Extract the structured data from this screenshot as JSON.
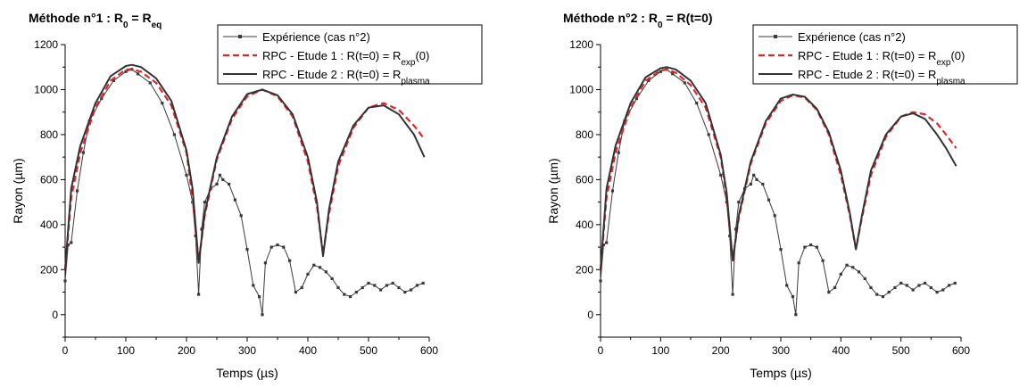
{
  "chart_data": [
    {
      "type": "line",
      "title": {
        "main": "Méthode n°1 : R",
        "sub": "0",
        "mid": " = R",
        "sub2": "eq"
      },
      "xlabel": "Temps (µs)",
      "ylabel": "Rayon (µm)",
      "xlim": [
        0,
        600
      ],
      "ylim": [
        -100,
        1200
      ],
      "xticks": [
        "0",
        "100",
        "200",
        "300",
        "400",
        "500",
        "600"
      ],
      "yticks": [
        "0",
        "200",
        "400",
        "600",
        "800",
        "1000",
        "1200"
      ],
      "legend_position": "top-right",
      "legend": [
        {
          "text": "Expérience (cas n°2)"
        },
        {
          "pre": "RPC - Etude 1 : R(t=0) = R",
          "sub": "exp",
          "post": "(0)"
        },
        {
          "pre": "RPC - Etude 2 : R(t=0) = R",
          "sub": "plasma",
          "post": ""
        }
      ],
      "series": [
        {
          "style": "experiment",
          "color": "#3a3a3a",
          "x": [
            0,
            5,
            10,
            20,
            30,
            40,
            60,
            80,
            100,
            110,
            120,
            140,
            160,
            180,
            200,
            210,
            215,
            220,
            225,
            230,
            240,
            250,
            255,
            260,
            270,
            280,
            290,
            300,
            310,
            320,
            325,
            330,
            340,
            350,
            360,
            370,
            380,
            390,
            400,
            410,
            420,
            430,
            440,
            450,
            460,
            470,
            480,
            490,
            500,
            510,
            520,
            530,
            540,
            550,
            560,
            570,
            580,
            590
          ],
          "y": [
            150,
            310,
            320,
            550,
            720,
            860,
            960,
            1040,
            1080,
            1090,
            1070,
            1030,
            940,
            800,
            620,
            500,
            350,
            90,
            380,
            500,
            560,
            580,
            620,
            600,
            580,
            510,
            440,
            290,
            130,
            80,
            0,
            230,
            300,
            310,
            300,
            240,
            100,
            120,
            180,
            220,
            210,
            190,
            160,
            120,
            90,
            80,
            100,
            120,
            140,
            130,
            110,
            130,
            140,
            120,
            100,
            110,
            130,
            140
          ]
        },
        {
          "style": "study1",
          "color": "#e0262b",
          "x": [
            0,
            10,
            25,
            50,
            75,
            100,
            110,
            125,
            150,
            175,
            200,
            210,
            220,
            230,
            250,
            275,
            300,
            325,
            350,
            375,
            400,
            415,
            425,
            435,
            450,
            475,
            500,
            525,
            550,
            575,
            592
          ],
          "y": [
            200,
            520,
            720,
            920,
            1040,
            1090,
            1090,
            1080,
            1030,
            930,
            720,
            520,
            230,
            440,
            690,
            870,
            970,
            1000,
            970,
            880,
            680,
            480,
            270,
            450,
            660,
            830,
            920,
            940,
            910,
            840,
            780
          ]
        },
        {
          "style": "study2",
          "color": "#333333",
          "x": [
            0,
            10,
            25,
            50,
            75,
            100,
            110,
            125,
            150,
            175,
            200,
            210,
            220,
            230,
            250,
            275,
            300,
            325,
            350,
            375,
            400,
            415,
            425,
            435,
            450,
            475,
            500,
            525,
            550,
            575,
            592
          ],
          "y": [
            200,
            560,
            750,
            940,
            1060,
            1105,
            1110,
            1100,
            1050,
            950,
            730,
            560,
            230,
            450,
            700,
            880,
            980,
            1000,
            975,
            890,
            700,
            500,
            260,
            470,
            680,
            840,
            920,
            930,
            890,
            800,
            700
          ]
        }
      ]
    },
    {
      "type": "line",
      "title": {
        "main": "Méthode n°2 : R",
        "sub": "0",
        "mid": " = R(t=0)",
        "sub2": ""
      },
      "xlabel": "Temps (µs)",
      "ylabel": "Rayon (µm)",
      "xlim": [
        0,
        600
      ],
      "ylim": [
        -100,
        1200
      ],
      "xticks": [
        "0",
        "100",
        "200",
        "300",
        "400",
        "500",
        "600"
      ],
      "yticks": [
        "0",
        "200",
        "400",
        "600",
        "800",
        "1000",
        "1200"
      ],
      "legend_position": "top-right",
      "legend": [
        {
          "text": "Expérience (cas n°2)"
        },
        {
          "pre": "RPC - Etude 1 : R(t=0) = R",
          "sub": "exp",
          "post": "(0)"
        },
        {
          "pre": "RPC - Etude 2 : R(t=0) = R",
          "sub": "plasma",
          "post": ""
        }
      ],
      "series": [
        {
          "style": "experiment",
          "color": "#3a3a3a",
          "x": [
            0,
            5,
            10,
            20,
            30,
            40,
            60,
            80,
            100,
            110,
            120,
            140,
            160,
            180,
            200,
            210,
            215,
            220,
            225,
            230,
            240,
            250,
            255,
            260,
            270,
            280,
            290,
            300,
            310,
            320,
            325,
            330,
            340,
            350,
            360,
            370,
            380,
            390,
            400,
            410,
            420,
            430,
            440,
            450,
            460,
            470,
            480,
            490,
            500,
            510,
            520,
            530,
            540,
            550,
            560,
            570,
            580,
            590
          ],
          "y": [
            150,
            310,
            320,
            550,
            720,
            860,
            960,
            1040,
            1080,
            1090,
            1070,
            1030,
            940,
            800,
            620,
            500,
            350,
            90,
            380,
            500,
            560,
            580,
            620,
            600,
            580,
            510,
            440,
            290,
            130,
            80,
            0,
            230,
            300,
            310,
            300,
            240,
            100,
            120,
            180,
            220,
            210,
            190,
            160,
            120,
            90,
            80,
            100,
            120,
            140,
            130,
            110,
            130,
            140,
            120,
            100,
            110,
            130,
            140
          ]
        },
        {
          "style": "study1",
          "color": "#e0262b",
          "x": [
            0,
            10,
            25,
            50,
            75,
            100,
            110,
            125,
            150,
            175,
            200,
            210,
            220,
            230,
            250,
            275,
            300,
            320,
            340,
            360,
            380,
            400,
            415,
            425,
            435,
            450,
            475,
            500,
            520,
            540,
            560,
            575,
            592
          ],
          "y": [
            200,
            520,
            720,
            920,
            1040,
            1085,
            1090,
            1075,
            1020,
            920,
            700,
            520,
            240,
            430,
            670,
            850,
            950,
            975,
            965,
            910,
            800,
            620,
            440,
            290,
            430,
            620,
            790,
            880,
            900,
            890,
            850,
            800,
            740
          ]
        },
        {
          "style": "study2",
          "color": "#333333",
          "x": [
            0,
            10,
            25,
            50,
            75,
            100,
            110,
            125,
            150,
            175,
            200,
            210,
            220,
            230,
            250,
            275,
            300,
            320,
            340,
            360,
            380,
            400,
            415,
            425,
            435,
            450,
            475,
            500,
            520,
            540,
            560,
            575,
            592
          ],
          "y": [
            200,
            560,
            750,
            940,
            1055,
            1095,
            1100,
            1090,
            1040,
            940,
            710,
            540,
            240,
            440,
            680,
            860,
            960,
            978,
            968,
            915,
            810,
            640,
            450,
            290,
            440,
            640,
            800,
            880,
            895,
            870,
            800,
            740,
            660
          ]
        }
      ]
    }
  ]
}
